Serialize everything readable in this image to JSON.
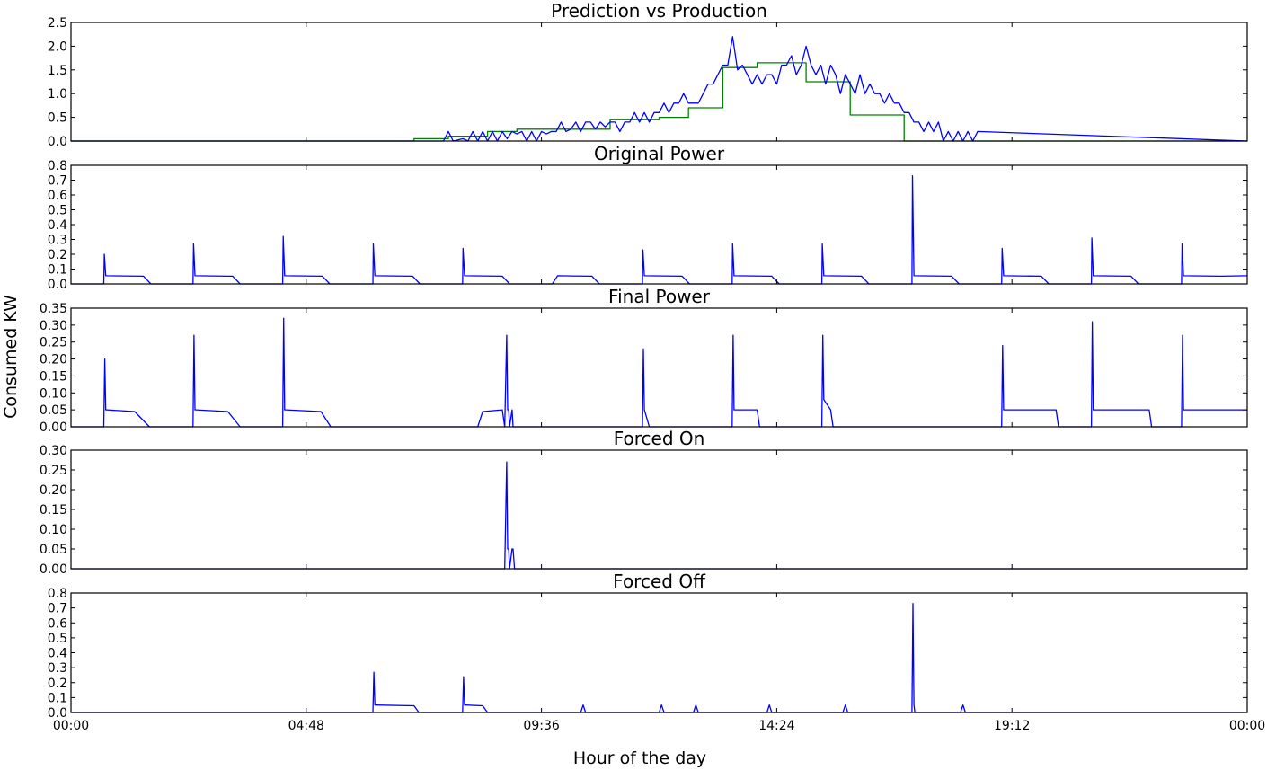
{
  "figure": {
    "ylabel": "Consumed KW",
    "xlabel": "Hour of the day",
    "xticks": [
      "00:00",
      "04:48",
      "09:36",
      "14:24",
      "19:12",
      "00:00"
    ]
  },
  "colors": {
    "blue": "#0000ff",
    "green": "#008000"
  },
  "chart_data": [
    {
      "type": "line",
      "title": "Prediction vs Production",
      "xlim": [
        0,
        24
      ],
      "ylim": [
        0,
        2.5
      ],
      "yticks": [
        "0.0",
        "0.5",
        "1.0",
        "1.5",
        "2.0",
        "2.5"
      ],
      "series": [
        {
          "color": "#008000",
          "kind": "step",
          "x": [
            0,
            7.0,
            7.7,
            8.5,
            9.1,
            10.0,
            11.0,
            12.0,
            12.6,
            13.3,
            14.0,
            15.0,
            15.9,
            17.0,
            17.6,
            24
          ],
          "y": [
            0,
            0.05,
            0.1,
            0.2,
            0.25,
            0.25,
            0.45,
            0.5,
            0.7,
            1.55,
            1.65,
            1.25,
            0.55,
            0.0,
            0.0,
            0
          ]
        },
        {
          "color": "#0000ff",
          "kind": "line",
          "x": [
            0,
            7.6,
            7.7,
            7.8,
            8.0,
            8.1,
            8.2,
            8.3,
            8.4,
            8.5,
            8.6,
            8.7,
            8.8,
            8.9,
            9.0,
            9.1,
            9.2,
            9.3,
            9.4,
            9.5,
            9.6,
            9.7,
            9.8,
            9.9,
            10.0,
            10.1,
            10.2,
            10.3,
            10.4,
            10.5,
            10.6,
            10.7,
            10.8,
            10.9,
            11.0,
            11.1,
            11.2,
            11.3,
            11.4,
            11.5,
            11.6,
            11.7,
            11.8,
            11.9,
            12.0,
            12.1,
            12.2,
            12.3,
            12.4,
            12.5,
            12.6,
            12.7,
            12.8,
            12.9,
            13.0,
            13.1,
            13.2,
            13.3,
            13.4,
            13.5,
            13.6,
            13.7,
            13.8,
            13.9,
            14.0,
            14.1,
            14.2,
            14.3,
            14.4,
            14.5,
            14.6,
            14.7,
            14.8,
            14.9,
            15.0,
            15.1,
            15.2,
            15.3,
            15.4,
            15.5,
            15.6,
            15.7,
            15.8,
            15.9,
            16.0,
            16.1,
            16.2,
            16.3,
            16.4,
            16.5,
            16.6,
            16.7,
            16.8,
            16.9,
            17.0,
            17.1,
            17.2,
            17.3,
            17.4,
            17.5,
            17.6,
            17.7,
            17.8,
            17.9,
            18.0,
            18.1,
            18.2,
            18.3,
            18.4,
            18.5,
            24
          ],
          "y": [
            0,
            0.0,
            0.2,
            0.0,
            0.05,
            0.0,
            0.2,
            0.0,
            0.2,
            0.0,
            0.2,
            0.0,
            0.2,
            0.05,
            0.2,
            0.15,
            0.2,
            0.0,
            0.2,
            0.0,
            0.2,
            0.15,
            0.2,
            0.2,
            0.4,
            0.2,
            0.25,
            0.4,
            0.2,
            0.4,
            0.4,
            0.25,
            0.4,
            0.3,
            0.4,
            0.4,
            0.2,
            0.4,
            0.4,
            0.6,
            0.4,
            0.6,
            0.4,
            0.6,
            0.6,
            0.8,
            0.6,
            0.8,
            0.8,
            1.0,
            0.8,
            0.8,
            0.8,
            1.0,
            1.2,
            1.2,
            1.4,
            1.6,
            1.6,
            2.2,
            1.5,
            1.6,
            1.4,
            1.2,
            1.4,
            1.2,
            1.4,
            1.4,
            1.2,
            1.6,
            1.6,
            1.8,
            1.4,
            1.6,
            2.0,
            1.6,
            1.4,
            1.6,
            1.2,
            1.6,
            1.4,
            1.0,
            1.4,
            1.2,
            1.0,
            1.4,
            1.0,
            1.2,
            1.0,
            1.0,
            0.8,
            1.0,
            0.8,
            0.8,
            0.6,
            0.6,
            0.4,
            0.4,
            0.2,
            0.4,
            0.2,
            0.4,
            0.0,
            0.2,
            0.0,
            0.2,
            0.0,
            0.2,
            0.0,
            0.2,
            0
          ]
        }
      ]
    },
    {
      "type": "line",
      "title": "Original Power",
      "xlim": [
        0,
        24
      ],
      "ylim": [
        0,
        0.8
      ],
      "yticks": [
        "0.0",
        "0.1",
        "0.2",
        "0.3",
        "0.4",
        "0.5",
        "0.6",
        "0.7",
        "0.8"
      ],
      "series": [
        {
          "color": "#0000ff",
          "kind": "cycles",
          "cycles": [
            [
              0.68,
              0.2,
              0.055
            ],
            [
              2.5,
              0.27,
              0.055
            ],
            [
              4.33,
              0.32,
              0.055
            ],
            [
              6.17,
              0.27,
              0.055
            ],
            [
              8.0,
              0.24,
              0.055
            ],
            [
              9.83,
              0.0,
              0.055
            ],
            [
              11.67,
              0.23,
              0.055
            ],
            [
              13.5,
              0.27,
              0.055
            ],
            [
              15.33,
              0.27,
              0.055
            ],
            [
              17.17,
              0.73,
              0.055
            ],
            [
              19.0,
              0.24,
              0.055
            ],
            [
              20.83,
              0.31,
              0.055
            ],
            [
              22.67,
              0.27,
              0.055
            ]
          ]
        }
      ]
    },
    {
      "type": "line",
      "title": "Final Power",
      "xlim": [
        0,
        24
      ],
      "ylim": [
        0,
        0.35
      ],
      "yticks": [
        "0.00",
        "0.05",
        "0.10",
        "0.15",
        "0.20",
        "0.25",
        "0.30",
        "0.35"
      ],
      "series": [
        {
          "color": "#0000ff",
          "kind": "points",
          "x": [
            0,
            0.67,
            0.69,
            0.71,
            0.73,
            1.3,
            1.6,
            1.65,
            2.49,
            2.51,
            2.53,
            2.55,
            3.2,
            3.45,
            3.5,
            4.32,
            4.34,
            4.36,
            4.38,
            5.1,
            5.3,
            5.35,
            8.3,
            8.4,
            8.8,
            8.85,
            8.89,
            8.91,
            8.93,
            8.95,
            9.0,
            9.02,
            9.3,
            9.4,
            9.9,
            10.2,
            10.4,
            10.45,
            10.8,
            11.2,
            11.66,
            11.68,
            11.7,
            11.8,
            11.85,
            12.2,
            12.35,
            12.4,
            13.49,
            13.51,
            13.53,
            14.0,
            14.05,
            14.1,
            14.2,
            14.5,
            14.6,
            15.32,
            15.34,
            15.36,
            15.5,
            15.55,
            15.6,
            15.65,
            16.3,
            16.4,
            17.0,
            17.1,
            17.7,
            17.75,
            17.8,
            18.0,
            18.05,
            18.99,
            19.01,
            19.03,
            19.05,
            20.1,
            20.15,
            20.82,
            20.84,
            20.86,
            20.88,
            22.0,
            22.05,
            22.66,
            22.68,
            22.7,
            24
          ],
          "y": [
            0,
            0,
            0.2,
            0.05,
            0.05,
            0.045,
            0.0,
            0,
            0,
            0.27,
            0.05,
            0.05,
            0.045,
            0.0,
            0,
            0,
            0.32,
            0.05,
            0.05,
            0.045,
            0.0,
            0,
            0,
            0.045,
            0.05,
            0.0,
            0.27,
            0.05,
            0.05,
            0.0,
            0.05,
            0,
            0,
            0,
            0,
            0,
            0,
            0,
            0,
            0,
            0,
            0.23,
            0.05,
            0,
            0,
            0,
            0,
            0,
            0,
            0.27,
            0.05,
            0.05,
            0,
            0,
            0,
            0,
            0,
            0,
            0.27,
            0.08,
            0.05,
            0,
            0,
            0,
            0,
            0,
            0,
            0,
            0,
            0,
            0,
            0,
            0,
            0,
            0.24,
            0.05,
            0.05,
            0.05,
            0,
            0,
            0.31,
            0.05,
            0.05,
            0.05,
            0,
            0,
            0.27,
            0.05,
            0.05
          ]
        }
      ]
    },
    {
      "type": "line",
      "title": "Forced On",
      "xlim": [
        0,
        24
      ],
      "ylim": [
        0,
        0.3
      ],
      "yticks": [
        "0.00",
        "0.05",
        "0.10",
        "0.15",
        "0.20",
        "0.25",
        "0.30"
      ],
      "series": [
        {
          "color": "#0000ff",
          "kind": "points",
          "x": [
            0,
            8.85,
            8.89,
            8.91,
            8.93,
            8.95,
            9.0,
            9.02,
            9.05,
            24
          ],
          "y": [
            0,
            0,
            0.27,
            0.05,
            0.05,
            0.0,
            0.05,
            0.05,
            0,
            0
          ]
        }
      ]
    },
    {
      "type": "line",
      "title": "Forced Off",
      "xlim": [
        0,
        24
      ],
      "ylim": [
        0,
        0.8
      ],
      "yticks": [
        "0.0",
        "0.1",
        "0.2",
        "0.3",
        "0.4",
        "0.5",
        "0.6",
        "0.7",
        "0.8"
      ],
      "series": [
        {
          "color": "#0000ff",
          "kind": "points",
          "x": [
            0,
            6.16,
            6.18,
            6.2,
            6.22,
            7.0,
            7.1,
            7.99,
            8.01,
            8.03,
            8.05,
            8.4,
            8.5,
            10.4,
            10.45,
            10.5,
            12.0,
            12.05,
            12.1,
            12.7,
            12.75,
            12.8,
            14.2,
            14.25,
            14.3,
            15.75,
            15.8,
            15.85,
            17.16,
            17.18,
            17.2,
            17.22,
            18.15,
            18.2,
            18.25,
            24
          ],
          "y": [
            0,
            0,
            0.27,
            0.05,
            0.05,
            0.045,
            0.0,
            0,
            0.24,
            0.05,
            0.05,
            0.045,
            0.0,
            0,
            0.05,
            0,
            0,
            0.05,
            0,
            0,
            0.05,
            0,
            0,
            0.05,
            0,
            0,
            0.05,
            0,
            0,
            0.73,
            0.05,
            0,
            0,
            0.05,
            0,
            0
          ]
        }
      ]
    }
  ]
}
